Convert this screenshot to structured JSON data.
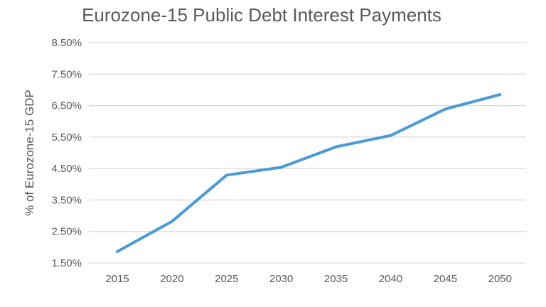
{
  "chart_data": {
    "type": "line",
    "title": "Eurozone-15 Public Debt Interest Payments",
    "xlabel": "",
    "ylabel": "% of Eurozone-15 GDP",
    "categories": [
      "2015",
      "2020",
      "2025",
      "2030",
      "2035",
      "2040",
      "2045",
      "2050"
    ],
    "series": [
      {
        "values": [
          1.86,
          2.82,
          4.29,
          4.54,
          5.19,
          5.55,
          6.39,
          6.85
        ],
        "color": "#4a9ad6"
      }
    ],
    "ylim": [
      1.5,
      8.5
    ],
    "yticks": [
      "1.50%",
      "2.50%",
      "3.50%",
      "4.50%",
      "5.50%",
      "6.50%",
      "7.50%",
      "8.50%"
    ],
    "grid": true,
    "legend": "none"
  }
}
